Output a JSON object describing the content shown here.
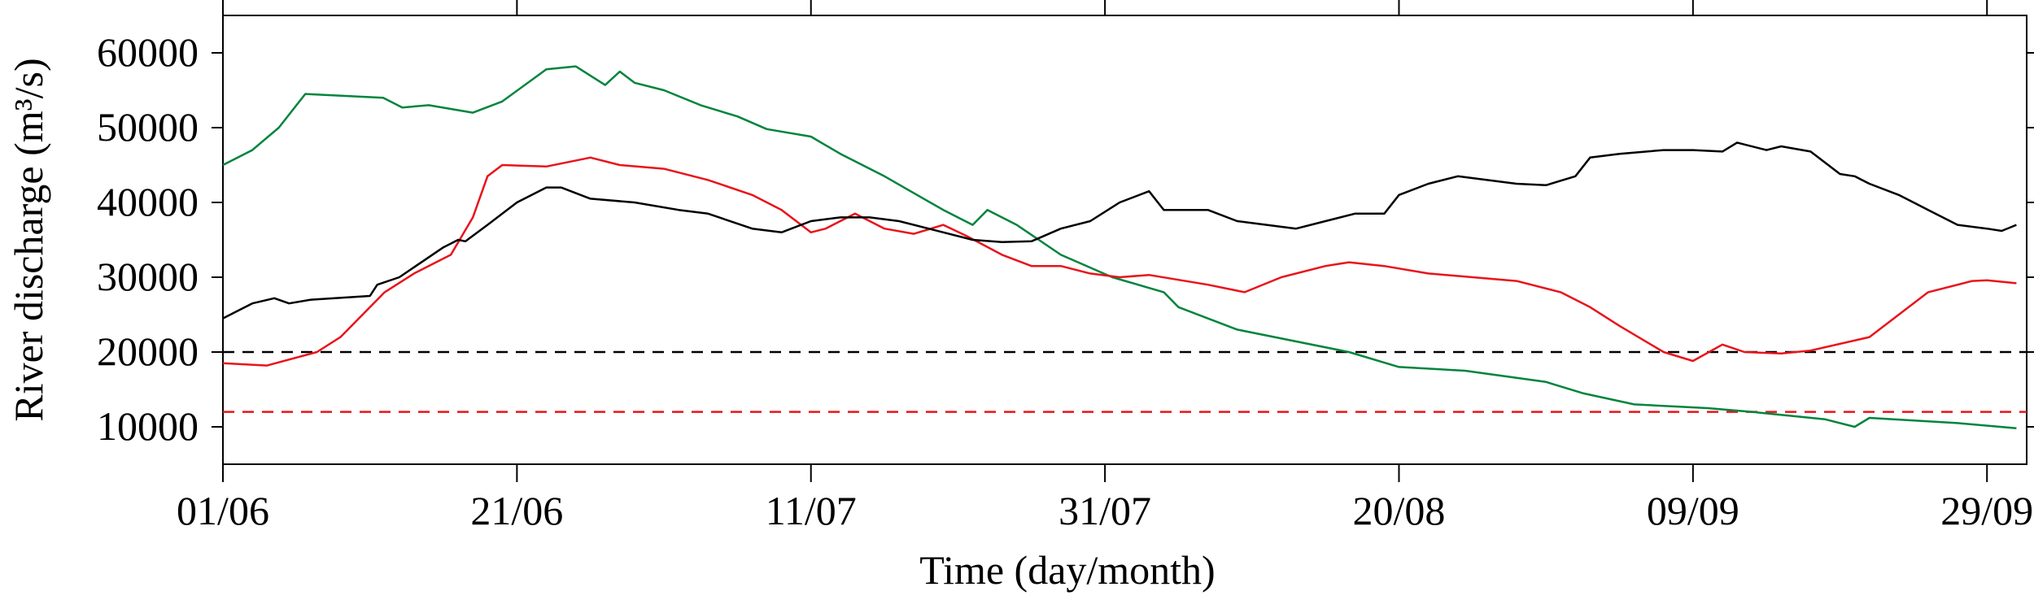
{
  "chart_data": {
    "type": "line",
    "xlabel": "Time (day/month)",
    "ylabel": "River discharge (m³/s)",
    "xlim": [
      0,
      122.7
    ],
    "xticks": [
      {
        "value": 0,
        "label": "01/06"
      },
      {
        "value": 20,
        "label": "21/06"
      },
      {
        "value": 40,
        "label": "11/07"
      },
      {
        "value": 60,
        "label": "31/07"
      },
      {
        "value": 80,
        "label": "20/08"
      },
      {
        "value": 100,
        "label": "09/09"
      },
      {
        "value": 120,
        "label": "29/09"
      }
    ],
    "ylim": [
      5000,
      65000
    ],
    "yticks": [
      10000,
      20000,
      30000,
      40000,
      50000,
      60000
    ],
    "hlines": [
      {
        "value": 20000,
        "color": "#000000"
      },
      {
        "value": 12000,
        "color": "#e8141b"
      }
    ],
    "series": [
      {
        "color": "#00843d",
        "x": [
          0,
          2,
          3.8,
          5.6,
          10.9,
          12.2,
          14,
          17,
          19,
          22,
          24,
          26,
          27,
          28,
          30,
          32.5,
          35,
          37,
          40,
          42,
          45,
          49,
          51,
          52,
          54,
          57,
          60.5,
          64,
          65,
          69,
          76.6,
          80,
          84.5,
          90,
          92.5,
          96,
          101,
          104,
          109,
          111,
          112,
          118,
          122
        ],
        "values": [
          45000,
          47000,
          50000,
          54500,
          54000,
          52700,
          53000,
          52000,
          53500,
          57800,
          58200,
          55700,
          57500,
          56000,
          55000,
          53000,
          51500,
          49800,
          48800,
          46500,
          43500,
          39000,
          37000,
          39000,
          37000,
          33000,
          30000,
          28000,
          26000,
          23000,
          20000,
          18000,
          17500,
          16000,
          14500,
          13000,
          12500,
          12000,
          11000,
          10000,
          11200,
          10500,
          9800
        ]
      },
      {
        "color": "#e8141b",
        "x": [
          0,
          3,
          6.4,
          8,
          11,
          13,
          15.5,
          17,
          18,
          19,
          22,
          25,
          27,
          30,
          33,
          36,
          38,
          40,
          41,
          43,
          45,
          47,
          49,
          50.6,
          53,
          55,
          57,
          59,
          61,
          63,
          67,
          69.5,
          72,
          75,
          76.6,
          79,
          82,
          88,
          91,
          93,
          95,
          98,
          100,
          102,
          103.5,
          106,
          108,
          112,
          114,
          116,
          119,
          120,
          122
        ],
        "values": [
          18500,
          18200,
          20000,
          22000,
          28000,
          30500,
          33000,
          38000,
          43500,
          45000,
          44800,
          46000,
          45000,
          44500,
          43000,
          41000,
          39000,
          36000,
          36500,
          38500,
          36500,
          35800,
          37000,
          35500,
          33000,
          31500,
          31500,
          30500,
          30000,
          30300,
          29000,
          28000,
          30000,
          31500,
          32000,
          31500,
          30500,
          29500,
          28000,
          26000,
          23500,
          20000,
          18800,
          21000,
          20000,
          19800,
          20200,
          22000,
          25000,
          28000,
          29500,
          29600,
          29200
        ]
      },
      {
        "color": "#000000",
        "x": [
          0,
          2,
          3.5,
          4.5,
          6,
          10,
          10.5,
          12,
          15,
          16,
          16.5,
          18,
          20,
          22,
          23,
          25,
          28,
          31,
          33,
          36,
          38,
          40,
          42,
          44,
          46,
          48,
          51,
          53,
          55,
          57,
          59,
          61,
          63,
          64,
          67,
          69,
          71,
          73,
          75,
          77,
          79,
          80,
          82,
          84,
          86,
          88,
          90,
          92,
          93,
          95,
          98,
          100,
          102,
          103,
          105,
          106,
          108,
          110,
          111,
          112,
          114,
          116,
          118,
          120,
          121,
          122
        ],
        "values": [
          24500,
          26500,
          27200,
          26500,
          27000,
          27500,
          29000,
          30000,
          34000,
          35000,
          34800,
          37000,
          40000,
          42000,
          42000,
          40500,
          40000,
          39000,
          38500,
          36500,
          36000,
          37500,
          38000,
          38000,
          37500,
          36500,
          35000,
          34700,
          34800,
          36500,
          37500,
          40000,
          41500,
          39000,
          39000,
          37500,
          37000,
          36500,
          37500,
          38500,
          38500,
          41000,
          42500,
          43500,
          43000,
          42500,
          42300,
          43500,
          46000,
          46500,
          47000,
          47000,
          46800,
          48000,
          47000,
          47500,
          46800,
          43800,
          43500,
          42500,
          41000,
          39000,
          37000,
          36500,
          36200,
          37000
        ]
      }
    ]
  }
}
